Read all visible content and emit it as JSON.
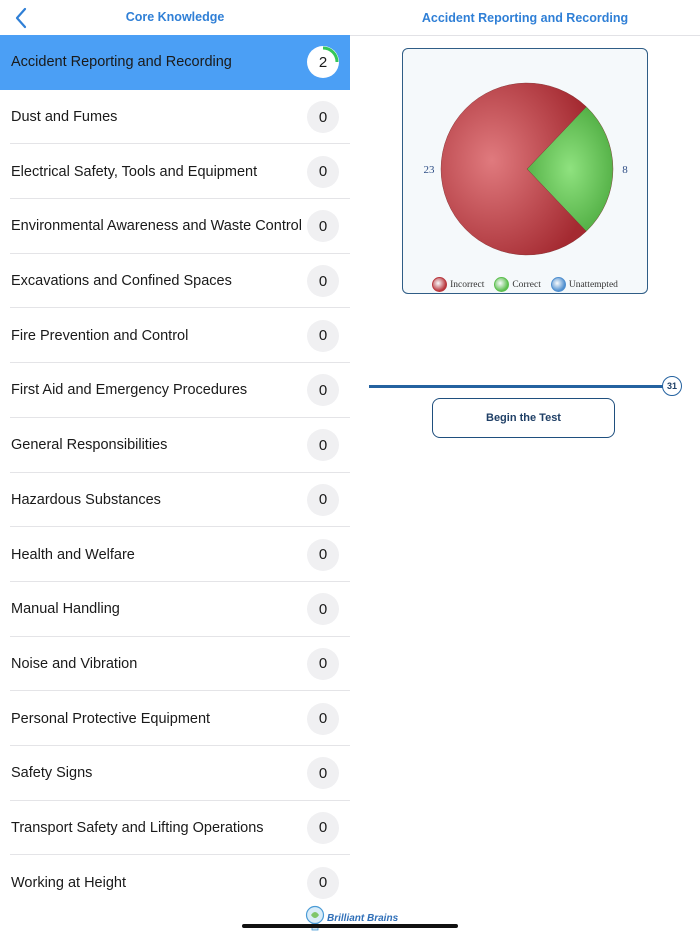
{
  "left_nav": {
    "title": "Core Knowledge"
  },
  "right_nav": {
    "title": "Accident Reporting and Recording"
  },
  "topics": [
    {
      "label": "Accident Reporting and Recording",
      "score": "2",
      "selected": true,
      "progress": 0.25
    },
    {
      "label": "Dust and Fumes",
      "score": "0"
    },
    {
      "label": "Electrical Safety, Tools and Equipment",
      "score": "0"
    },
    {
      "label": "Environmental Awareness and Waste Control",
      "score": "0"
    },
    {
      "label": "Excavations and Confined Spaces",
      "score": "0"
    },
    {
      "label": "Fire Prevention and Control",
      "score": "0"
    },
    {
      "label": "First Aid and Emergency Procedures",
      "score": "0"
    },
    {
      "label": "General Responsibilities",
      "score": "0"
    },
    {
      "label": "Hazardous Substances",
      "score": "0"
    },
    {
      "label": "Health and Welfare",
      "score": "0"
    },
    {
      "label": "Manual Handling",
      "score": "0"
    },
    {
      "label": "Noise and Vibration",
      "score": "0"
    },
    {
      "label": "Personal Protective Equipment",
      "score": "0"
    },
    {
      "label": "Safety Signs",
      "score": "0"
    },
    {
      "label": "Transport Safety and Lifting Operations",
      "score": "0"
    },
    {
      "label": "Working at Height",
      "score": "0"
    }
  ],
  "chart_data": {
    "type": "pie",
    "categories": [
      "Incorrect",
      "Correct",
      "Unattempted"
    ],
    "values": [
      23,
      8,
      0
    ],
    "colors": [
      "#b8373d",
      "#5cbf4e",
      "#4f8fcf"
    ],
    "legend_position": "bottom"
  },
  "slider": {
    "value": "31",
    "max": 31
  },
  "begin_button": {
    "label": "Begin the Test"
  },
  "brand": {
    "name": "Brilliant Brains"
  },
  "colors": {
    "accent": "#2f7fd6",
    "selected_row": "#4b9ff5",
    "dark_blue": "#1f3f66"
  }
}
